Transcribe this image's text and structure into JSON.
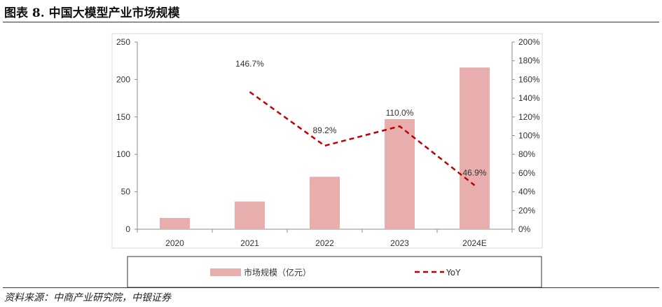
{
  "figure": {
    "title": "图表 8. 中国大模型产业市场规模",
    "source": "资料来源：中商产业研究院，中银证券"
  },
  "chart_data": {
    "type": "bar",
    "categories": [
      "2020",
      "2021",
      "2022",
      "2023",
      "2024E"
    ],
    "series": [
      {
        "name": "市场规模（亿元）",
        "type": "bar",
        "axis": "left",
        "values": [
          15,
          37,
          70,
          147,
          216
        ],
        "color": "#e8aeae"
      },
      {
        "name": "YoY",
        "type": "line",
        "axis": "right",
        "values": [
          null,
          146.7,
          89.2,
          110.0,
          46.9
        ],
        "labels": [
          "",
          "146.7%",
          "89.2%",
          "110.0%",
          "46.9%"
        ],
        "color": "#c00000",
        "dash": "dashed"
      }
    ],
    "y_left": {
      "min": 0,
      "max": 250,
      "ticks": [
        0,
        50,
        100,
        150,
        200,
        250
      ],
      "tick_labels": [
        "0",
        "50",
        "100",
        "150",
        "200",
        "250"
      ]
    },
    "y_right": {
      "min": 0,
      "max": 200,
      "ticks": [
        0,
        20,
        40,
        60,
        80,
        100,
        120,
        140,
        160,
        180,
        200
      ],
      "tick_labels": [
        "0%",
        "20%",
        "40%",
        "60%",
        "80%",
        "100%",
        "120%",
        "140%",
        "160%",
        "180%",
        "200%"
      ]
    },
    "grid": false,
    "legend_position": "bottom"
  }
}
